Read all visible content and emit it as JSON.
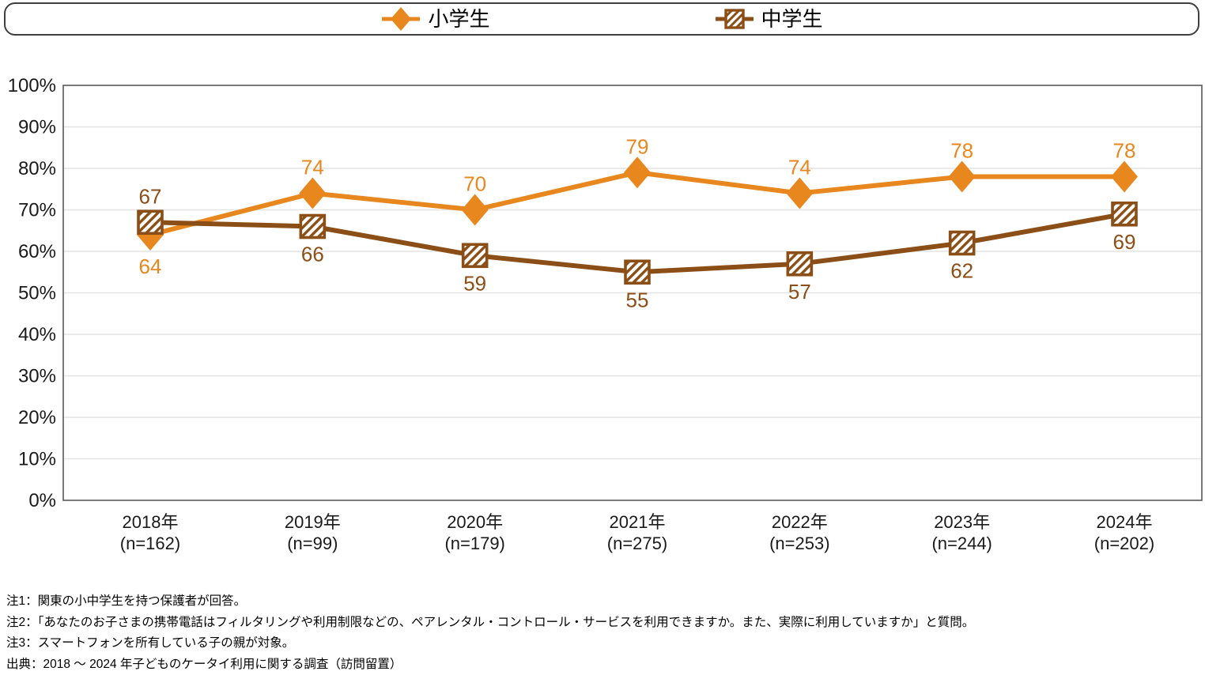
{
  "legend": {
    "items": [
      {
        "label": "小学生",
        "marker": "diamond",
        "color": "#E8871E"
      },
      {
        "label": "中学生",
        "marker": "hatched-square",
        "color": "#8B4E16"
      }
    ]
  },
  "chart_data": {
    "type": "line",
    "title": "",
    "categories": [
      "2018年",
      "2019年",
      "2020年",
      "2021年",
      "2022年",
      "2023年",
      "2024年"
    ],
    "category_sublabels": [
      "(n=162)",
      "(n=99)",
      "(n=179)",
      "(n=275)",
      "(n=253)",
      "(n=244)",
      "(n=202)"
    ],
    "series": [
      {
        "name": "小学生",
        "values": [
          64,
          74,
          70,
          79,
          74,
          78,
          78
        ],
        "color": "#E8871E",
        "marker": "diamond",
        "label_positions": [
          "below",
          "above",
          "above",
          "above",
          "above",
          "above",
          "above"
        ]
      },
      {
        "name": "中学生",
        "values": [
          67,
          66,
          59,
          55,
          57,
          62,
          69
        ],
        "color": "#8B4E16",
        "marker": "hatched-square",
        "label_positions": [
          "above",
          "below",
          "below",
          "below",
          "below",
          "below",
          "below"
        ]
      }
    ],
    "xlabel": "",
    "ylabel": "",
    "ylim": [
      0,
      100
    ],
    "ytick_step": 10,
    "ytick_suffix": "%",
    "grid": true,
    "legend_position": "top",
    "gridline_color": "#E4E4E4",
    "axis_border_color": "#595959",
    "tick_label_color": "#1a1a1a"
  },
  "footnotes": {
    "lines": [
      "注1：関東の小中学生を持つ保護者が回答。",
      "注2：「あなたのお子さまの携帯電話はフィルタリングや利用制限などの、ペアレンタル・コントロール・サービスを利用できますか。また、実際に利用していますか」と質問。",
      "注3：スマートフォンを所有している子の親が対象。",
      "出典：2018 ～ 2024 年子どものケータイ利用に関する調査（訪問留置）"
    ]
  }
}
